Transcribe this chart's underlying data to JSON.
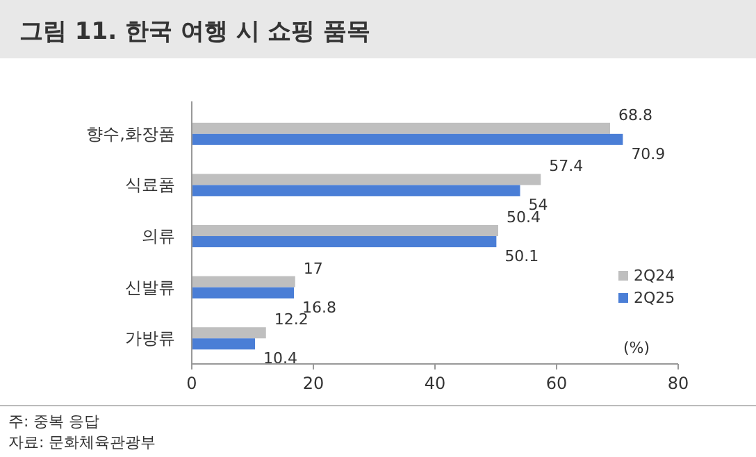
{
  "chart_data": {
    "type": "bar",
    "orientation": "horizontal",
    "title": "그림 11. 한국 여행 시 쇼핑 품목",
    "categories": [
      "향수,화장품",
      "식료품",
      "의류",
      "신발류",
      "가방류"
    ],
    "series": [
      {
        "name": "2Q24",
        "color": "#bfbfbf",
        "values": [
          68.8,
          57.4,
          50.4,
          17,
          12.2
        ]
      },
      {
        "name": "2Q25",
        "color": "#4a7ed6",
        "values": [
          70.9,
          54,
          50.1,
          16.8,
          10.4
        ]
      }
    ],
    "xlim": [
      0,
      80
    ],
    "xticks": [
      0,
      20,
      40,
      60,
      80
    ],
    "xlabel": "(%)",
    "data_labels": true,
    "legend": "right",
    "grid": false,
    "annotations": [
      "주: 중복 응답",
      "자료: 문화체육관광부"
    ]
  }
}
